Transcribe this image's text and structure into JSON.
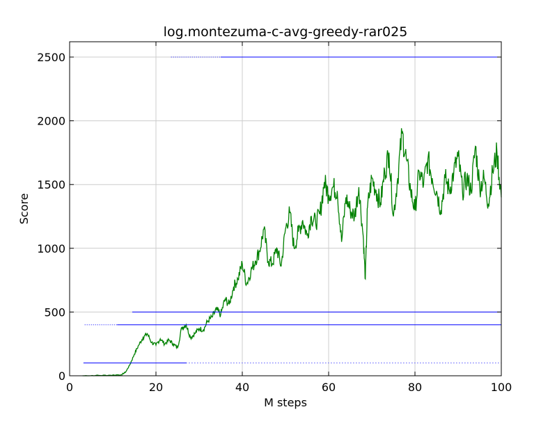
{
  "chart_data": {
    "type": "line",
    "title": "log.montezuma-c-avg-greedy-rar025",
    "xlabel": "M steps",
    "ylabel": "Score",
    "xlim": [
      0,
      100
    ],
    "ylim": [
      0,
      2620
    ],
    "xticks": [
      0,
      20,
      40,
      60,
      80,
      100
    ],
    "yticks": [
      0,
      500,
      1000,
      1500,
      2000,
      2500
    ],
    "grid": true,
    "series": [
      {
        "color": "#008000",
        "style": "line",
        "points": [
          [
            3,
            0
          ],
          [
            6,
            2
          ],
          [
            9,
            4
          ],
          [
            12,
            8
          ],
          [
            13,
            30
          ],
          [
            14,
            90
          ],
          [
            15,
            170
          ],
          [
            16,
            240
          ],
          [
            17,
            300
          ],
          [
            18,
            330
          ],
          [
            19,
            260
          ],
          [
            20,
            240
          ],
          [
            21,
            290
          ],
          [
            22,
            250
          ],
          [
            23,
            280
          ],
          [
            24,
            250
          ],
          [
            25,
            220
          ],
          [
            26,
            380
          ],
          [
            27,
            400
          ],
          [
            28,
            300
          ],
          [
            29,
            330
          ],
          [
            30,
            370
          ],
          [
            31,
            360
          ],
          [
            32,
            430
          ],
          [
            33,
            460
          ],
          [
            34,
            520
          ],
          [
            35,
            480
          ],
          [
            36,
            600
          ],
          [
            37,
            560
          ],
          [
            38,
            700
          ],
          [
            39,
            760
          ],
          [
            40,
            880
          ],
          [
            41,
            720
          ],
          [
            42,
            820
          ],
          [
            43,
            900
          ],
          [
            44,
            980
          ],
          [
            45,
            1150
          ],
          [
            46,
            900
          ],
          [
            47,
            880
          ],
          [
            48,
            1000
          ],
          [
            49,
            860
          ],
          [
            50,
            1150
          ],
          [
            51,
            1280
          ],
          [
            52,
            1000
          ],
          [
            53,
            1130
          ],
          [
            54,
            1220
          ],
          [
            55,
            1100
          ],
          [
            56,
            1250
          ],
          [
            57,
            1200
          ],
          [
            58,
            1270
          ],
          [
            59,
            1520
          ],
          [
            60,
            1420
          ],
          [
            61,
            1480
          ],
          [
            62,
            1450
          ],
          [
            63,
            1050
          ],
          [
            64,
            1400
          ],
          [
            65,
            1300
          ],
          [
            66,
            1250
          ],
          [
            67,
            1480
          ],
          [
            68,
            1100
          ],
          [
            68.5,
            760
          ],
          [
            69,
            1320
          ],
          [
            70,
            1550
          ],
          [
            71,
            1450
          ],
          [
            72,
            1350
          ],
          [
            73,
            1600
          ],
          [
            74,
            1750
          ],
          [
            75,
            1250
          ],
          [
            76,
            1550
          ],
          [
            77,
            1900
          ],
          [
            78,
            1700
          ],
          [
            79,
            1450
          ],
          [
            80,
            1300
          ],
          [
            81,
            1600
          ],
          [
            82,
            1500
          ],
          [
            83,
            1700
          ],
          [
            84,
            1550
          ],
          [
            85,
            1450
          ],
          [
            86,
            1300
          ],
          [
            87,
            1550
          ],
          [
            88,
            1450
          ],
          [
            89,
            1600
          ],
          [
            90,
            1720
          ],
          [
            91,
            1450
          ],
          [
            92,
            1550
          ],
          [
            93,
            1450
          ],
          [
            94,
            1800
          ],
          [
            95,
            1480
          ],
          [
            96,
            1550
          ],
          [
            97,
            1350
          ],
          [
            98,
            1600
          ],
          [
            99,
            1750
          ],
          [
            100,
            1400
          ]
        ]
      },
      {
        "color": "#0000ff",
        "style": "hline",
        "y": 2500,
        "x_start": 23.5,
        "dotted_until": 35
      },
      {
        "color": "#0000ff",
        "style": "hline",
        "y": 500,
        "x_start": 14.5
      },
      {
        "color": "#0000ff",
        "style": "hline",
        "y": 400,
        "x_start": 3.5,
        "dotted_until": 11
      },
      {
        "color": "#0000ff",
        "style": "hline",
        "y": 100,
        "x_start": 3.2,
        "dotted_from": 27
      },
      {
        "color": "#0000ff",
        "style": "hline",
        "y": 0,
        "x_start": 3
      }
    ]
  }
}
